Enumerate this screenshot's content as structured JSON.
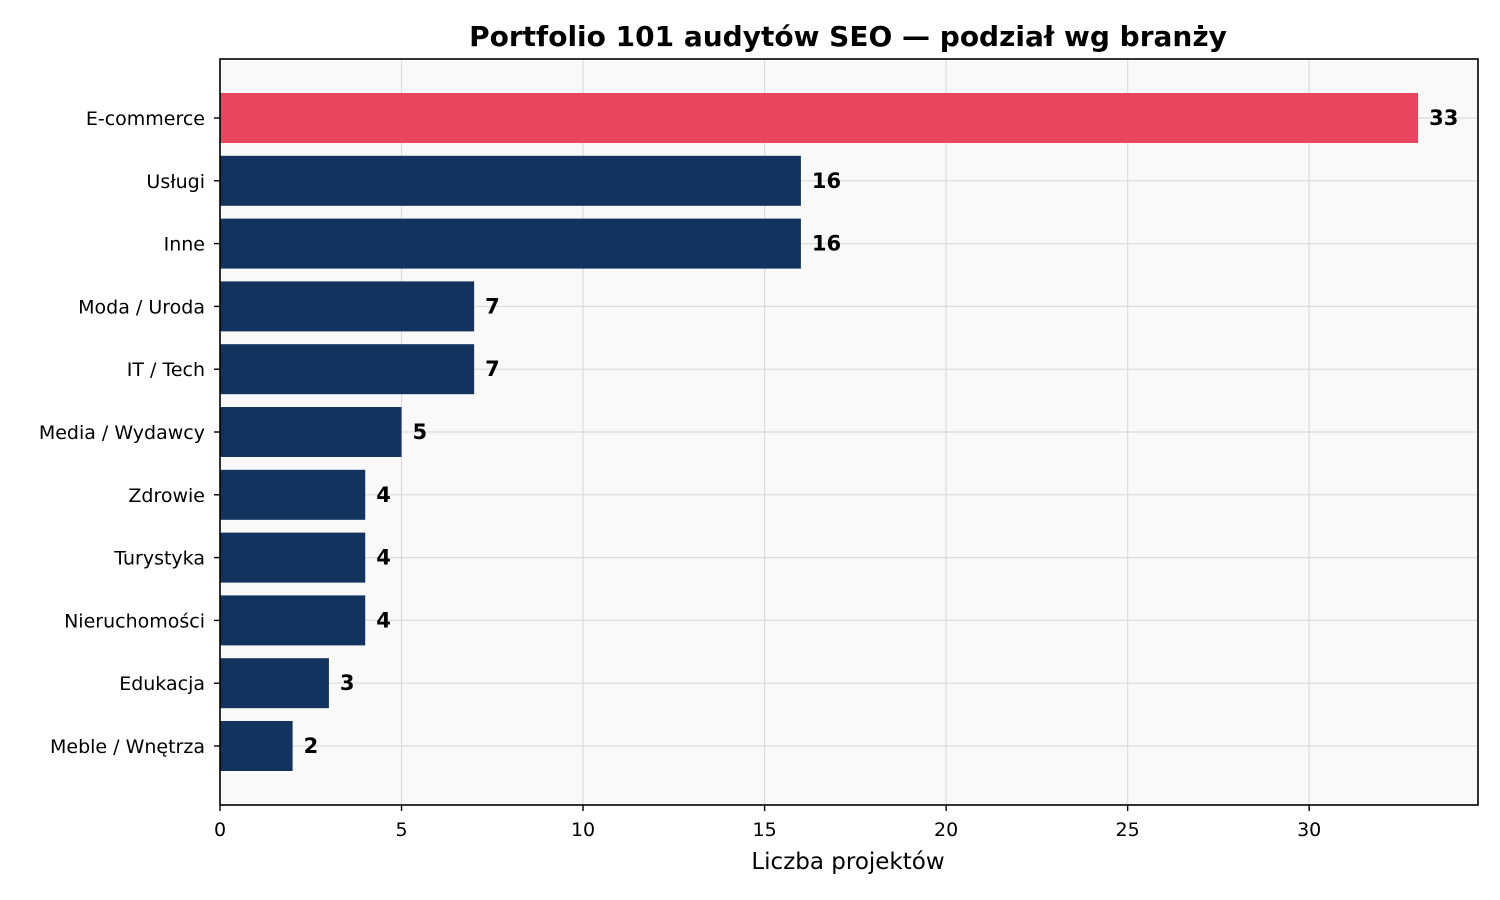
{
  "chart_data": {
    "type": "bar",
    "orientation": "horizontal",
    "title": "Portfolio 101 audytów SEO — podział wg branży",
    "xlabel": "Liczba projektów",
    "ylabel": "",
    "categories": [
      "E-commerce",
      "Usługi",
      "Inne",
      "Moda / Uroda",
      "IT / Tech",
      "Media / Wydawcy",
      "Zdrowie",
      "Turystyka",
      "Nieruchomości",
      "Edukacja",
      "Meble / Wnętrza"
    ],
    "values": [
      33,
      16,
      16,
      7,
      7,
      5,
      4,
      4,
      4,
      3,
      2
    ],
    "value_labels": [
      "33",
      "16",
      "16",
      "7",
      "7",
      "5",
      "4",
      "4",
      "4",
      "3",
      "2"
    ],
    "xlim": [
      0,
      34.65
    ],
    "xticks": [
      0,
      5,
      10,
      15,
      20,
      25,
      30
    ],
    "xtick_labels": [
      "0",
      "5",
      "10",
      "15",
      "20",
      "25",
      "30"
    ],
    "grid": true,
    "colors": {
      "highlight": "#e8455f",
      "bar": "#12335e",
      "plot_background": "#f9f9f9",
      "grid": "#dcdcdc"
    },
    "highlight_index": 0
  }
}
